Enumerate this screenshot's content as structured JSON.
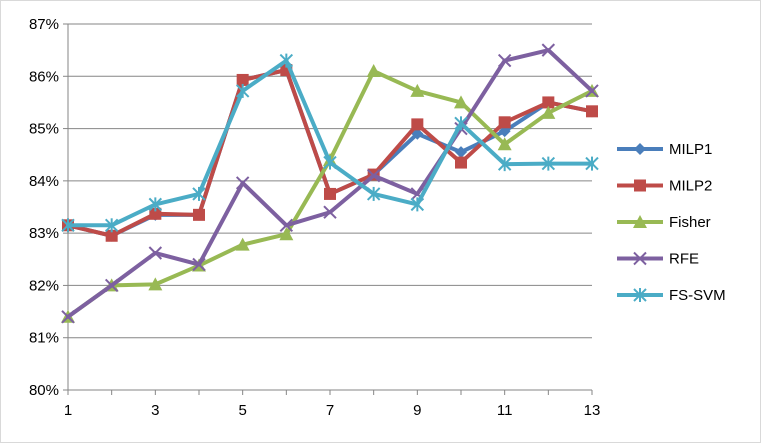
{
  "chart_data": {
    "type": "line",
    "x": [
      1,
      2,
      3,
      4,
      5,
      6,
      7,
      8,
      9,
      10,
      11,
      12,
      13
    ],
    "x_tick_labels": [
      "1",
      "3",
      "5",
      "7",
      "9",
      "11",
      "13"
    ],
    "x_tick_values": [
      1,
      3,
      5,
      7,
      9,
      11,
      13
    ],
    "ylim": [
      80,
      87
    ],
    "y_tick_values": [
      80,
      81,
      82,
      83,
      84,
      85,
      86,
      87
    ],
    "y_tick_labels": [
      "80%",
      "81%",
      "82%",
      "83%",
      "84%",
      "85%",
      "86%",
      "87%"
    ],
    "grid": "horizontal",
    "legend_position": "right",
    "series": [
      {
        "name": "MILP1",
        "color": "#4a7ebb",
        "marker": "diamond",
        "values": [
          83.15,
          82.95,
          83.35,
          83.35,
          85.93,
          86.12,
          83.75,
          84.12,
          84.9,
          84.55,
          84.95,
          85.5,
          85.33
        ]
      },
      {
        "name": "MILP2",
        "color": "#be4b48",
        "marker": "square",
        "values": [
          83.15,
          82.95,
          83.37,
          83.35,
          85.93,
          86.12,
          83.75,
          84.12,
          85.08,
          84.35,
          85.12,
          85.5,
          85.33
        ]
      },
      {
        "name": "Fisher",
        "color": "#98b954",
        "marker": "triangle",
        "values": [
          81.4,
          82.0,
          82.02,
          82.38,
          82.78,
          82.98,
          84.4,
          86.1,
          85.72,
          85.5,
          84.7,
          85.3,
          85.72
        ]
      },
      {
        "name": "RFE",
        "color": "#7d60a0",
        "marker": "x",
        "values": [
          81.4,
          82.0,
          82.62,
          82.4,
          83.96,
          83.15,
          83.4,
          84.1,
          83.75,
          85.0,
          86.3,
          86.5,
          85.72
        ]
      },
      {
        "name": "FS-SVM",
        "color": "#4bacc6",
        "marker": "star",
        "values": [
          83.15,
          83.15,
          83.55,
          83.75,
          85.72,
          86.3,
          84.35,
          83.75,
          83.55,
          85.1,
          84.32,
          84.33,
          84.33
        ]
      }
    ]
  }
}
